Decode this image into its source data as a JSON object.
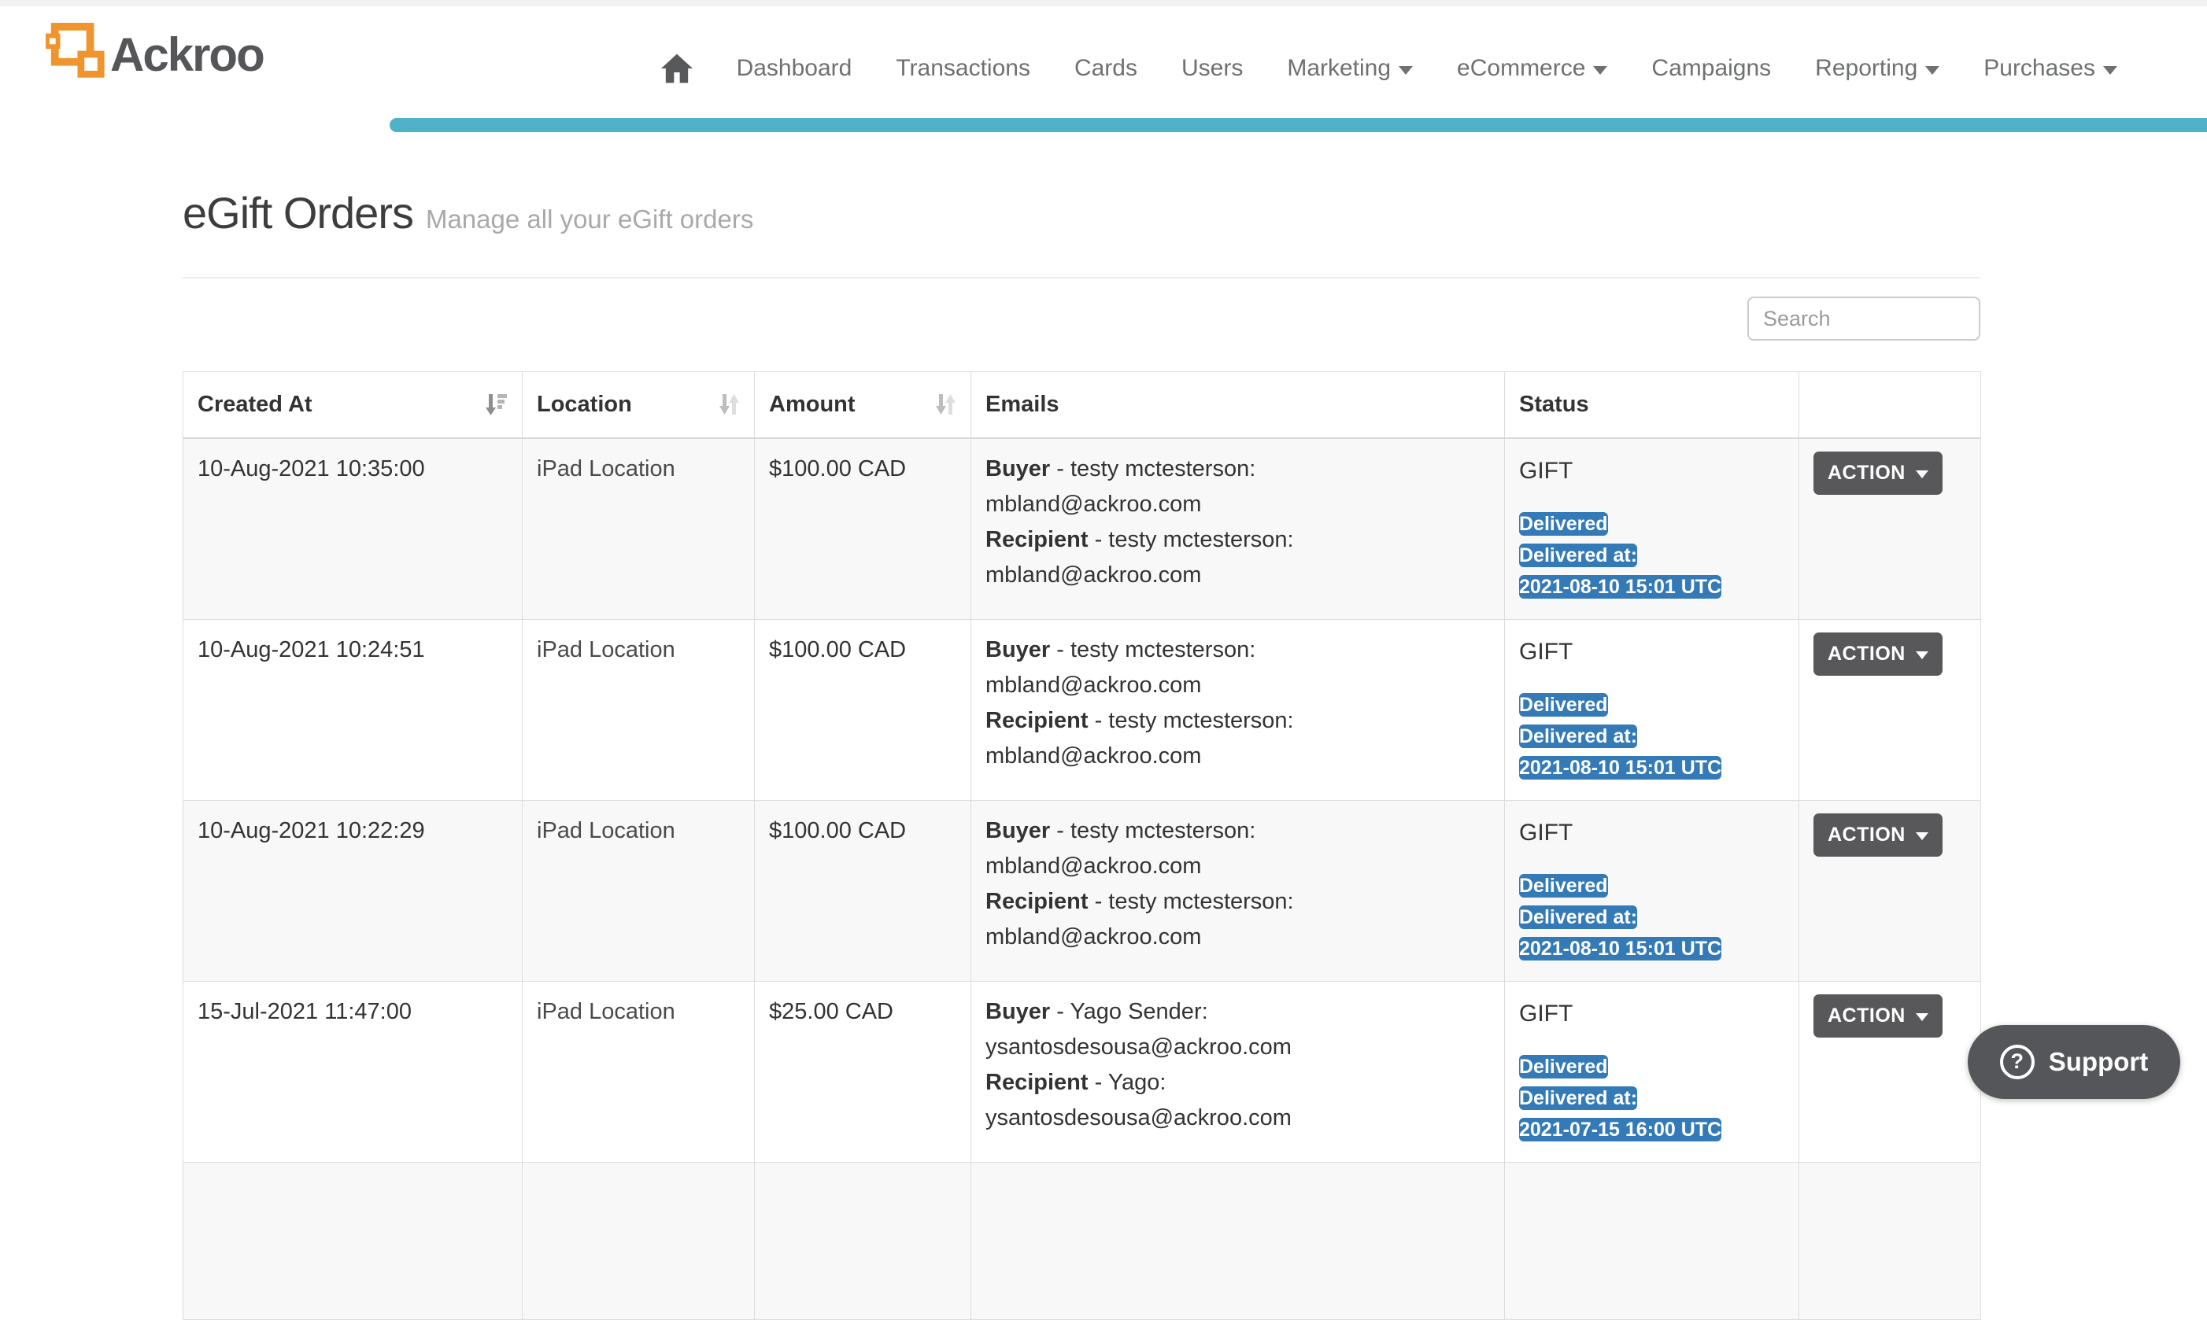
{
  "brand": {
    "name": "Ackroo",
    "logo_icon": "ackroo-squares-icon"
  },
  "colors": {
    "teal": "#4FB2C9",
    "orange": "#F0942D",
    "badge_blue": "#337AB7",
    "button_gray": "#58585A",
    "support_gray": "#55565A",
    "border_gray": "#DDDDDD",
    "stripe_gray": "#F8F8F8"
  },
  "nav": {
    "home_icon": "home-icon",
    "items": [
      {
        "label": "Dashboard",
        "caret": false
      },
      {
        "label": "Transactions",
        "caret": false
      },
      {
        "label": "Cards",
        "caret": false
      },
      {
        "label": "Users",
        "caret": false
      },
      {
        "label": "Marketing",
        "caret": true
      },
      {
        "label": "eCommerce",
        "caret": true
      },
      {
        "label": "Campaigns",
        "caret": false
      },
      {
        "label": "Reporting",
        "caret": true
      },
      {
        "label": "Purchases",
        "caret": true
      }
    ]
  },
  "page": {
    "title": "eGift Orders",
    "subtitle": "Manage all your eGift orders"
  },
  "search": {
    "placeholder": "Search"
  },
  "table": {
    "columns": [
      {
        "label": "Created At",
        "sort": "desc"
      },
      {
        "label": "Location",
        "sort": "both"
      },
      {
        "label": "Amount",
        "sort": "both"
      },
      {
        "label": "Emails",
        "sort": "none"
      },
      {
        "label": "Status",
        "sort": "none"
      },
      {
        "label": "",
        "sort": "none"
      }
    ],
    "action_label": "ACTION",
    "rows": [
      {
        "created_at": "10-Aug-2021 10:35:00",
        "location": "iPad Location",
        "amount": "$100.00 CAD",
        "emails": {
          "buyer_label": "Buyer",
          "buyer_info": " - testy mctesterson:",
          "buyer_email": "mbland@ackroo.com",
          "recipient_label": "Recipient",
          "recipient_info": " - testy mctesterson:",
          "recipient_email": "mbland@ackroo.com"
        },
        "status": {
          "type": "GIFT",
          "badges": [
            "Delivered",
            "Delivered at:",
            "2021-08-10 15:01 UTC"
          ]
        }
      },
      {
        "created_at": "10-Aug-2021 10:24:51",
        "location": "iPad Location",
        "amount": "$100.00 CAD",
        "emails": {
          "buyer_label": "Buyer",
          "buyer_info": " - testy mctesterson:",
          "buyer_email": "mbland@ackroo.com",
          "recipient_label": "Recipient",
          "recipient_info": " - testy mctesterson:",
          "recipient_email": "mbland@ackroo.com"
        },
        "status": {
          "type": "GIFT",
          "badges": [
            "Delivered",
            "Delivered at:",
            "2021-08-10 15:01 UTC"
          ]
        }
      },
      {
        "created_at": "10-Aug-2021 10:22:29",
        "location": "iPad Location",
        "amount": "$100.00 CAD",
        "emails": {
          "buyer_label": "Buyer",
          "buyer_info": " - testy mctesterson:",
          "buyer_email": "mbland@ackroo.com",
          "recipient_label": "Recipient",
          "recipient_info": " - testy mctesterson:",
          "recipient_email": "mbland@ackroo.com"
        },
        "status": {
          "type": "GIFT",
          "badges": [
            "Delivered",
            "Delivered at:",
            "2021-08-10 15:01 UTC"
          ]
        }
      },
      {
        "created_at": "15-Jul-2021 11:47:00",
        "location": "iPad Location",
        "amount": "$25.00 CAD",
        "emails": {
          "buyer_label": "Buyer",
          "buyer_info": " - Yago Sender:",
          "buyer_email": "ysantosdesousa@ackroo.com",
          "recipient_label": "Recipient",
          "recipient_info": " - Yago:",
          "recipient_email": "ysantosdesousa@ackroo.com"
        },
        "status": {
          "type": "GIFT",
          "badges": [
            "Delivered",
            "Delivered at:",
            "2021-07-15 16:00 UTC"
          ]
        }
      }
    ],
    "partial_row_visible": true
  },
  "support": {
    "label": "Support",
    "icon": "question-mark-icon"
  }
}
